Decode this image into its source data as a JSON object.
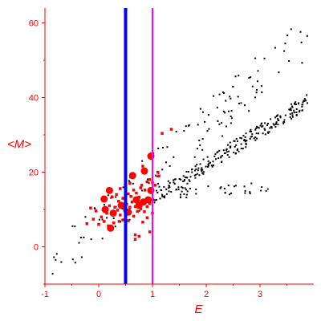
{
  "chart_data": {
    "type": "scatter",
    "title": "",
    "xlabel": "E",
    "ylabel": "<M>",
    "xlim": [
      -1,
      4
    ],
    "ylim": [
      -10,
      64
    ],
    "xticks": [
      -1,
      0,
      1,
      2,
      3
    ],
    "yticks": [
      0,
      20,
      40,
      60
    ],
    "grid": false,
    "legend": "none",
    "colors": {
      "axis": "#ff0000",
      "tick_label": "#ff0000",
      "black_points": "#000000",
      "red_points": "#ff0000",
      "blue_line": "#0000ff",
      "magenta_line": "#ff00ff"
    },
    "vertical_lines": [
      {
        "x": 0.5,
        "color": "#0000ff"
      },
      {
        "x": 1.0,
        "color": "#ff00ff"
      }
    ],
    "upper_band": {
      "x_range": [
        -0.9,
        3.9
      ],
      "center_start": -5.5,
      "center_slope": 13.0,
      "spread": 6.5,
      "count": 130
    },
    "lower_band": {
      "x_range": [
        1.0,
        3.9
      ],
      "center_start": 13.0,
      "center_slope": 9.0,
      "spread": 2.0,
      "count": 240
    },
    "low_scatter": {
      "x_range": [
        1.5,
        3.3
      ],
      "center_start": 14.5,
      "center_slope": 1.0,
      "spread": 1.5,
      "count": 35
    },
    "red_large": [
      {
        "x": 0.1,
        "y": 12.8
      },
      {
        "x": 0.2,
        "y": 15.1
      },
      {
        "x": 0.12,
        "y": 10.0
      },
      {
        "x": 0.27,
        "y": 9.0
      },
      {
        "x": 0.42,
        "y": 11.1
      },
      {
        "x": 0.55,
        "y": 9.3
      },
      {
        "x": 0.63,
        "y": 19.1
      },
      {
        "x": 0.85,
        "y": 20.3
      },
      {
        "x": 0.97,
        "y": 24.3
      },
      {
        "x": 0.97,
        "y": 15.1
      },
      {
        "x": 0.92,
        "y": 12.6
      },
      {
        "x": 0.83,
        "y": 12.0
      },
      {
        "x": 0.7,
        "y": 12.6
      },
      {
        "x": 0.75,
        "y": 11.1
      },
      {
        "x": 0.22,
        "y": 5.0
      }
    ],
    "red_small": [
      {
        "x": 0.33,
        "y": 14.0
      },
      {
        "x": 0.37,
        "y": 12.2
      },
      {
        "x": 0.45,
        "y": 13.0
      },
      {
        "x": 0.5,
        "y": 12.4
      },
      {
        "x": 0.55,
        "y": 14.2
      },
      {
        "x": 0.6,
        "y": 13.5
      },
      {
        "x": 0.65,
        "y": 15.2
      },
      {
        "x": 0.7,
        "y": 14.4
      },
      {
        "x": 0.75,
        "y": 13.3
      },
      {
        "x": 0.78,
        "y": 15.8
      },
      {
        "x": 0.8,
        "y": 16.5
      },
      {
        "x": 0.86,
        "y": 15.2
      },
      {
        "x": 0.9,
        "y": 17.4
      },
      {
        "x": 0.95,
        "y": 18.0
      },
      {
        "x": 1.0,
        "y": 17.2
      },
      {
        "x": 1.05,
        "y": 16.5
      },
      {
        "x": 1.12,
        "y": 19.0
      },
      {
        "x": 0.2,
        "y": 11.0
      },
      {
        "x": 0.25,
        "y": 13.4
      },
      {
        "x": 0.3,
        "y": 10.6
      },
      {
        "x": 0.35,
        "y": 9.8
      },
      {
        "x": 0.4,
        "y": 8.5
      },
      {
        "x": 0.45,
        "y": 7.2
      },
      {
        "x": 0.48,
        "y": 10.1
      },
      {
        "x": 0.52,
        "y": 11.4
      },
      {
        "x": 0.58,
        "y": 10.6
      },
      {
        "x": 0.62,
        "y": 12.0
      },
      {
        "x": 0.68,
        "y": 10.8
      },
      {
        "x": 0.72,
        "y": 9.5
      },
      {
        "x": 0.78,
        "y": 10.2
      },
      {
        "x": 0.85,
        "y": 9.4
      },
      {
        "x": 0.9,
        "y": 10.8
      },
      {
        "x": 0.95,
        "y": 11.6
      },
      {
        "x": 1.0,
        "y": 9.0
      },
      {
        "x": 0.15,
        "y": 9.0
      },
      {
        "x": 0.1,
        "y": 6.8
      },
      {
        "x": 0.05,
        "y": 8.0
      },
      {
        "x": -0.05,
        "y": 9.6
      },
      {
        "x": -0.1,
        "y": 7.4
      },
      {
        "x": 0.0,
        "y": 6.0
      },
      {
        "x": 0.18,
        "y": 5.6
      },
      {
        "x": 0.28,
        "y": 6.4
      },
      {
        "x": 0.38,
        "y": 6.8
      },
      {
        "x": 0.55,
        "y": 7.0
      },
      {
        "x": 0.65,
        "y": 8.2
      },
      {
        "x": 0.82,
        "y": 6.6
      },
      {
        "x": 0.9,
        "y": 7.8
      },
      {
        "x": 0.68,
        "y": 3.2
      },
      {
        "x": 0.75,
        "y": 2.8
      },
      {
        "x": 0.68,
        "y": 2.0
      },
      {
        "x": 0.95,
        "y": 4.0
      },
      {
        "x": -0.15,
        "y": 10.4
      },
      {
        "x": 0.4,
        "y": 15.6
      },
      {
        "x": 0.58,
        "y": 17.0
      },
      {
        "x": 0.82,
        "y": 21.6
      },
      {
        "x": 1.1,
        "y": 20.0
      },
      {
        "x": 1.35,
        "y": 31.5
      },
      {
        "x": 1.18,
        "y": 30.4
      },
      {
        "x": -0.22,
        "y": 6.2
      }
    ]
  }
}
